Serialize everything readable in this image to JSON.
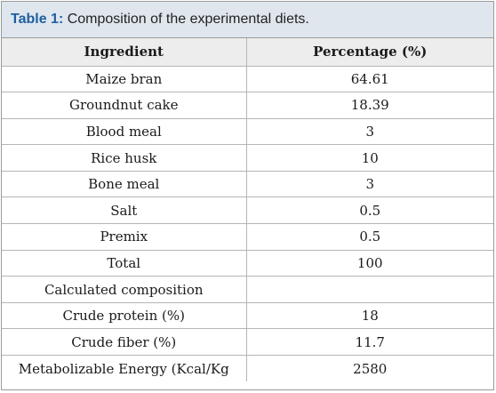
{
  "caption": {
    "label": "Table 1:",
    "title": " Composition of the experimental diets."
  },
  "headers": [
    "Ingredient",
    "Percentage (%)"
  ],
  "rows": [
    [
      "Maize bran",
      "64.61"
    ],
    [
      "Groundnut cake",
      "18.39"
    ],
    [
      "Blood meal",
      "3"
    ],
    [
      "Rice husk",
      "10"
    ],
    [
      "Bone meal",
      "3"
    ],
    [
      "Salt",
      "0.5"
    ],
    [
      "Premix",
      "0.5"
    ],
    [
      "Total",
      "100"
    ],
    [
      "Calculated composition",
      ""
    ],
    [
      "Crude protein (%)",
      "18"
    ],
    [
      "Crude fiber (%)",
      "11.7"
    ],
    [
      "Metabolizable Energy (Kcal/Kg",
      "2580"
    ]
  ]
}
